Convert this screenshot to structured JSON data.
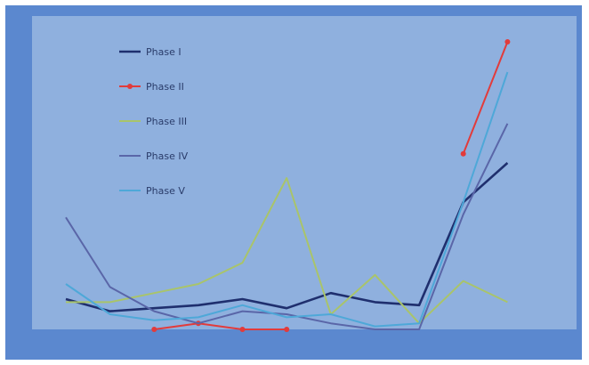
{
  "chart_data": {
    "type": "line",
    "title": "",
    "xlabel": "",
    "ylabel": "",
    "x": [
      "",
      "",
      "",
      "",
      "",
      "",
      "",
      "",
      "",
      "",
      "",
      ""
    ],
    "ylim": [
      0,
      100
    ],
    "grid": false,
    "legend_position": "top-left",
    "series": [
      {
        "name": "Phase I",
        "color": "#1f2f6e",
        "marker": "none",
        "values": [
          10,
          6,
          7,
          8,
          10,
          7,
          12,
          9,
          8,
          42,
          55,
          null
        ]
      },
      {
        "name": "Phase II",
        "color": "#e23b3b",
        "marker": "circle",
        "values": [
          null,
          null,
          0,
          2,
          0,
          0,
          null,
          null,
          null,
          58,
          95,
          null
        ]
      },
      {
        "name": "Phase III",
        "color": "#a9c46a",
        "marker": "none",
        "values": [
          9,
          9,
          12,
          15,
          22,
          50,
          5,
          18,
          2,
          16,
          9,
          null
        ]
      },
      {
        "name": "Phase IV",
        "color": "#5a66a8",
        "marker": "none",
        "values": [
          37,
          14,
          6,
          2,
          6,
          5,
          2,
          0,
          0,
          38,
          68,
          null
        ]
      },
      {
        "name": "Phase V",
        "color": "#4ea8d8",
        "marker": "none",
        "values": [
          15,
          5,
          3,
          4,
          8,
          4,
          5,
          1,
          2,
          42,
          85,
          null
        ]
      }
    ]
  }
}
